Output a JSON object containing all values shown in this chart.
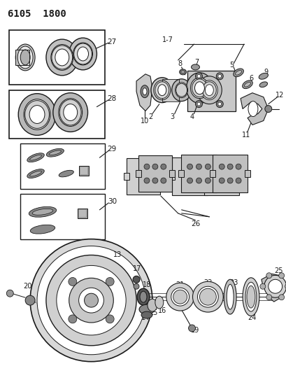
{
  "title": "6105  1800",
  "bg_color": "#ffffff",
  "line_color": "#1a1a1a",
  "figsize": [
    4.1,
    5.33
  ],
  "dpi": 100
}
